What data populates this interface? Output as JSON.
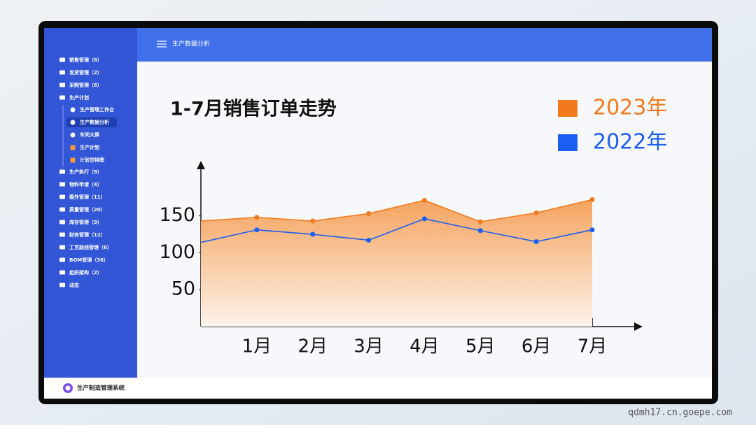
{
  "header": {
    "title": "生产数据分析"
  },
  "sidebar": {
    "items": [
      {
        "label": "销售管理（6）"
      },
      {
        "label": "发货管理（2）"
      },
      {
        "label": "采购管理（6）"
      },
      {
        "label": "生产计划",
        "children": [
          "生产管理工作台",
          "生产数据分析",
          "车间大屏",
          "生产计划",
          "计划甘特图"
        ]
      },
      {
        "label": "生产执行（9）"
      },
      {
        "label": "物料申请（4）"
      },
      {
        "label": "委外管理（11）"
      },
      {
        "label": "质量管理（20）"
      },
      {
        "label": "库存管理（9）"
      },
      {
        "label": "财务管理（12）"
      },
      {
        "label": "工艺路线管理（6）"
      },
      {
        "label": "BOM管理（36）"
      },
      {
        "label": "组织架构（2）"
      },
      {
        "label": "动态"
      }
    ]
  },
  "footer": {
    "brand": "生产制造管理系统"
  },
  "watermark": "qdmh17.cn.goepe.com",
  "chart_data": {
    "type": "area",
    "title": "1-7月销售订单走势",
    "categories": [
      null,
      "1月",
      "2月",
      "3月",
      "4月",
      "5月",
      "6月",
      "7月"
    ],
    "series": [
      {
        "name": "2023年",
        "color": "#f27a1c",
        "values": [
          143,
          148,
          143,
          153,
          171,
          142,
          154,
          172
        ]
      },
      {
        "name": "2022年",
        "color": "#1b5ef2",
        "values": [
          114,
          131,
          125,
          117,
          146,
          130,
          115,
          131
        ]
      }
    ],
    "ylim": [
      0,
      215
    ],
    "yticks": [
      50,
      100,
      150
    ],
    "grid": false,
    "legend": "top-right"
  }
}
